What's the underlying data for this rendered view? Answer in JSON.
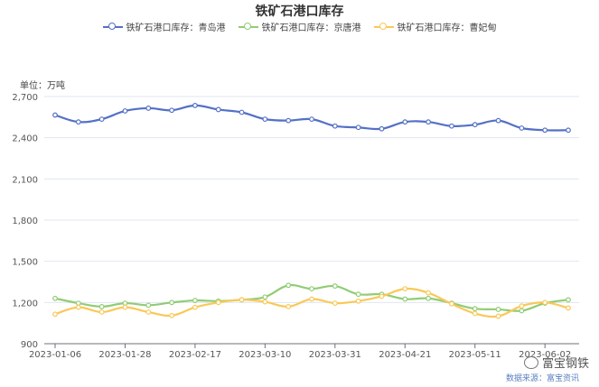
{
  "chart_data": {
    "type": "line",
    "title": "铁矿石港口库存",
    "unit_label": "单位：万吨",
    "ylim": [
      900,
      2700
    ],
    "yticks": [
      "900",
      "1,200",
      "1,500",
      "1,800",
      "2,100",
      "2,400",
      "2,700"
    ],
    "ytick_values": [
      900,
      1200,
      1500,
      1800,
      2100,
      2400,
      2700
    ],
    "xtick_labels": [
      "2023-01-06",
      "2023-01-28",
      "2023-02-17",
      "2023-03-10",
      "2023-03-31",
      "2023-04-21",
      "2023-05-11",
      "2023-06-02"
    ],
    "xtick_index": [
      0,
      3,
      6,
      9,
      12,
      15,
      18,
      21
    ],
    "x": [
      "2023-01-06",
      "2023-01-13",
      "2023-01-20",
      "2023-01-28",
      "2023-02-03",
      "2023-02-10",
      "2023-02-17",
      "2023-02-24",
      "2023-03-03",
      "2023-03-10",
      "2023-03-17",
      "2023-03-24",
      "2023-03-31",
      "2023-04-07",
      "2023-04-14",
      "2023-04-21",
      "2023-04-28",
      "2023-05-05",
      "2023-05-11",
      "2023-05-19",
      "2023-05-26",
      "2023-06-02",
      "2023-06-09"
    ],
    "grid": true,
    "legend_position": "top-center",
    "series": [
      {
        "name": "铁矿石港口库存：青岛港",
        "color": "#5470c6",
        "values": [
          2565,
          2515,
          2535,
          2595,
          2615,
          2600,
          2635,
          2605,
          2585,
          2535,
          2525,
          2535,
          2485,
          2475,
          2465,
          2515,
          2515,
          2485,
          2495,
          2525,
          2470,
          2455,
          2455
        ]
      },
      {
        "name": "铁矿石港口库存：京唐港",
        "color": "#91cc75",
        "values": [
          1230,
          1195,
          1170,
          1195,
          1180,
          1200,
          1215,
          1210,
          1220,
          1240,
          1325,
          1300,
          1320,
          1260,
          1260,
          1225,
          1230,
          1195,
          1155,
          1150,
          1140,
          1195,
          1220
        ]
      },
      {
        "name": "铁矿石港口库存：曹妃甸",
        "color": "#fac858",
        "values": [
          1115,
          1165,
          1130,
          1165,
          1130,
          1105,
          1165,
          1200,
          1220,
          1205,
          1170,
          1225,
          1195,
          1210,
          1245,
          1300,
          1270,
          1190,
          1120,
          1100,
          1175,
          1200,
          1160
        ]
      }
    ]
  },
  "watermark": {
    "brand": "富宝钢铁",
    "source": "数据来源：富宝资讯"
  }
}
